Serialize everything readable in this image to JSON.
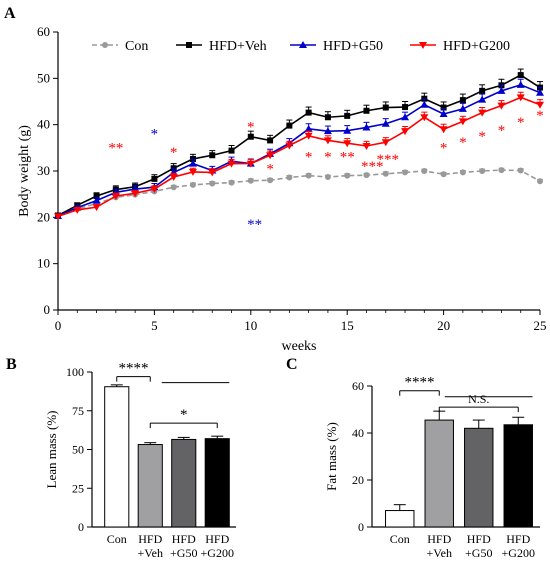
{
  "chart_data": [
    {
      "panel": "A",
      "type": "line",
      "xlabel": "weeks",
      "ylabel": "Body weight (g)",
      "xlim": [
        0,
        25
      ],
      "ylim": [
        0,
        60
      ],
      "xticks": [
        0,
        5,
        10,
        15,
        20,
        25
      ],
      "yticks": [
        0,
        10,
        20,
        30,
        40,
        50,
        60
      ],
      "legend": "top",
      "x": [
        0,
        1,
        2,
        3,
        4,
        5,
        6,
        7,
        8,
        9,
        10,
        11,
        12,
        13,
        14,
        15,
        16,
        17,
        18,
        19,
        20,
        21,
        22,
        23,
        24,
        25
      ],
      "series": [
        {
          "name": "Con",
          "color": "#999999",
          "marker": "circle",
          "dashed": true,
          "values": [
            20.2,
            21.8,
            23.0,
            24.3,
            24.9,
            25.6,
            26.5,
            27.0,
            27.3,
            27.5,
            27.9,
            28.0,
            28.6,
            29.0,
            28.7,
            29.0,
            29.1,
            29.4,
            29.7,
            30.0,
            29.3,
            29.7,
            30.0,
            30.2,
            30.1,
            27.8
          ],
          "err": [
            0.4,
            0.4,
            0.4,
            0.4,
            0.4,
            0.4,
            0.4,
            0.4,
            0.4,
            0.4,
            0.4,
            0.4,
            0.4,
            0.4,
            0.4,
            0.4,
            0.4,
            0.4,
            0.4,
            0.4,
            0.4,
            0.4,
            0.4,
            0.4,
            0.4,
            0.4
          ]
        },
        {
          "name": "HFD+Veh",
          "color": "#000000",
          "marker": "square",
          "dashed": false,
          "values": [
            20.4,
            22.6,
            24.6,
            26.0,
            26.6,
            28.3,
            30.6,
            32.6,
            33.4,
            34.4,
            37.4,
            36.6,
            39.8,
            42.6,
            41.6,
            41.9,
            43.0,
            43.7,
            43.8,
            45.6,
            43.7,
            45.3,
            47.3,
            48.5,
            50.7,
            48.0
          ],
          "err": [
            0.3,
            0.5,
            0.7,
            0.8,
            0.8,
            0.9,
            1.0,
            1.0,
            1.0,
            1.1,
            1.2,
            1.1,
            1.2,
            1.2,
            1.2,
            1.2,
            1.2,
            1.2,
            1.2,
            1.2,
            1.2,
            1.3,
            1.3,
            1.3,
            1.3,
            1.3
          ]
        },
        {
          "name": "HFD+G50",
          "color": "#0000cc",
          "marker": "triangle",
          "dashed": false,
          "values": [
            20.3,
            22.1,
            23.6,
            25.4,
            26.1,
            26.5,
            29.7,
            31.6,
            30.1,
            32.1,
            31.6,
            33.7,
            36.0,
            39.1,
            38.6,
            38.7,
            39.4,
            40.2,
            41.6,
            44.3,
            42.3,
            43.4,
            45.4,
            47.3,
            48.6,
            46.9
          ],
          "err": [
            0.3,
            0.4,
            0.6,
            0.7,
            0.7,
            0.8,
            0.9,
            0.9,
            0.9,
            0.9,
            1.0,
            1.0,
            1.0,
            1.1,
            1.1,
            1.1,
            1.1,
            1.1,
            1.1,
            1.2,
            1.2,
            1.2,
            1.2,
            1.2,
            1.2,
            1.2
          ]
        },
        {
          "name": "HFD+G200",
          "color": "#ff0000",
          "marker": "triangle-down",
          "dashed": false,
          "values": [
            20.2,
            21.6,
            22.2,
            24.6,
            25.2,
            26.1,
            28.7,
            29.8,
            29.7,
            31.6,
            31.6,
            33.4,
            35.5,
            37.6,
            36.6,
            36.0,
            35.4,
            36.2,
            38.6,
            41.6,
            39.0,
            40.7,
            42.6,
            44.1,
            45.9,
            44.3
          ],
          "err": [
            0.3,
            0.4,
            0.5,
            0.6,
            0.6,
            0.7,
            0.8,
            0.8,
            0.8,
            0.9,
            0.9,
            0.9,
            0.9,
            1.0,
            1.0,
            1.0,
            1.0,
            1.0,
            1.0,
            1.1,
            1.1,
            1.1,
            1.1,
            1.1,
            1.1,
            1.1
          ]
        }
      ],
      "annotations": [
        {
          "text": "**",
          "x": 3,
          "y": 34,
          "color": "#ff0000"
        },
        {
          "text": "*",
          "x": 5,
          "y": 37,
          "color": "#0000cc"
        },
        {
          "text": "*",
          "x": 6,
          "y": 33,
          "color": "#ff0000"
        },
        {
          "text": "*",
          "x": 10,
          "y": 38.5,
          "color": "#ff0000"
        },
        {
          "text": "**",
          "x": 10.2,
          "y": 17.5,
          "color": "#0000cc"
        },
        {
          "text": "*",
          "x": 11,
          "y": 29.5,
          "color": "#ff0000"
        },
        {
          "text": "*",
          "x": 13,
          "y": 32,
          "color": "#ff0000"
        },
        {
          "text": "*",
          "x": 14,
          "y": 32,
          "color": "#ff0000"
        },
        {
          "text": "**",
          "x": 15,
          "y": 32,
          "color": "#ff0000"
        },
        {
          "text": "***",
          "x": 16.3,
          "y": 30,
          "color": "#ff0000"
        },
        {
          "text": "***",
          "x": 17.1,
          "y": 31.5,
          "color": "#ff0000"
        },
        {
          "text": "*",
          "x": 20,
          "y": 34,
          "color": "#ff0000"
        },
        {
          "text": "*",
          "x": 21,
          "y": 35.2,
          "color": "#ff0000"
        },
        {
          "text": "*",
          "x": 22,
          "y": 36.5,
          "color": "#ff0000"
        },
        {
          "text": "*",
          "x": 23,
          "y": 37.8,
          "color": "#ff0000"
        },
        {
          "text": "*",
          "x": 24,
          "y": 39.5,
          "color": "#ff0000"
        },
        {
          "text": "*",
          "x": 25,
          "y": 41,
          "color": "#ff0000"
        }
      ]
    },
    {
      "panel": "B",
      "type": "bar",
      "ylabel": "Lean mass (%)",
      "ylim": [
        0,
        100
      ],
      "yticks": [
        0,
        25,
        50,
        75,
        100
      ],
      "categories": [
        {
          "line1": "Con",
          "line2": ""
        },
        {
          "line1": "HFD",
          "line2": "+Veh"
        },
        {
          "line1": "HFD",
          "line2": "+G50"
        },
        {
          "line1": "HFD",
          "line2": "+G200"
        }
      ],
      "values": [
        90.5,
        53.2,
        56.5,
        57.0
      ],
      "err": [
        1.2,
        1.2,
        1.3,
        1.6
      ],
      "fills": [
        "#ffffff",
        "#a0a0a3",
        "#636366",
        "#000000"
      ],
      "significance": [
        {
          "text": "****",
          "from": 0,
          "to": 1,
          "y": 97
        },
        {
          "text": "*",
          "from": 1,
          "to": 3,
          "y": 67
        }
      ]
    },
    {
      "panel": "C",
      "type": "bar",
      "ylabel": "Fat mass (%)",
      "ylim": [
        0,
        60
      ],
      "yticks": [
        0,
        20,
        40,
        60
      ],
      "categories": [
        {
          "line1": "Con",
          "line2": ""
        },
        {
          "line1": "HFD",
          "line2": "+Veh"
        },
        {
          "line1": "HFD",
          "line2": "+G50"
        },
        {
          "line1": "HFD",
          "line2": "+G200"
        }
      ],
      "values": [
        7.0,
        45.5,
        42.0,
        43.5
      ],
      "err": [
        2.5,
        3.8,
        3.5,
        3.2
      ],
      "fills": [
        "#ffffff",
        "#a0a0a3",
        "#636366",
        "#000000"
      ],
      "significance": [
        {
          "text": "****",
          "from": 0,
          "to": 1,
          "y": 58
        },
        {
          "text": "N.S.",
          "from": 1,
          "to": 3,
          "y": 51
        }
      ]
    }
  ],
  "panel_labels": {
    "a": "A",
    "b": "B",
    "c": "C"
  }
}
